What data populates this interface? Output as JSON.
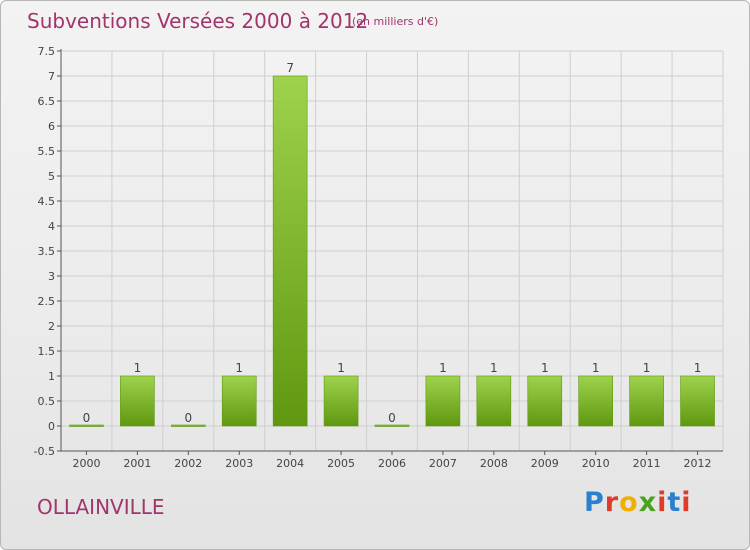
{
  "header": {
    "title": "Subventions Versées 2000 à 2012",
    "unit": "(en milliers d'€)"
  },
  "footer": {
    "commune": "OLLAINVILLE",
    "logo_text": "Proxiti"
  },
  "colors": {
    "title": "#a0356c",
    "bar_light": "#9fd24d",
    "bar_dark": "#5f9810",
    "axis": "#555555",
    "grid": "#cfcfcf",
    "logo": [
      "#2b7fcf",
      "#e03a2a",
      "#f0b000",
      "#4aa31c",
      "#e03a2a",
      "#2b7fcf",
      "#e03a2a"
    ]
  },
  "chart_data": {
    "type": "bar",
    "categories": [
      "2000",
      "2001",
      "2002",
      "2003",
      "2004",
      "2005",
      "2006",
      "2007",
      "2008",
      "2009",
      "2010",
      "2011",
      "2012"
    ],
    "values": [
      0,
      1,
      0,
      1,
      7,
      1,
      0,
      1,
      1,
      1,
      1,
      1,
      1
    ],
    "data_labels": [
      "0",
      "1",
      "0",
      "1",
      "7",
      "1",
      "0",
      "1",
      "1",
      "1",
      "1",
      "1",
      "1"
    ],
    "ylim": [
      -0.5,
      7.5
    ],
    "yticks": [
      -0.5,
      0,
      0.5,
      1,
      1.5,
      2,
      2.5,
      3,
      3.5,
      4,
      4.5,
      5,
      5.5,
      6,
      6.5,
      7,
      7.5
    ],
    "ytick_labels": [
      "-0.5",
      "0",
      "0.5",
      "1",
      "1.5",
      "2",
      "2.5",
      "3",
      "3.5",
      "4",
      "4.5",
      "5",
      "5.5",
      "6",
      "6.5",
      "7",
      "7.5"
    ],
    "grid": true,
    "legend": "none"
  }
}
